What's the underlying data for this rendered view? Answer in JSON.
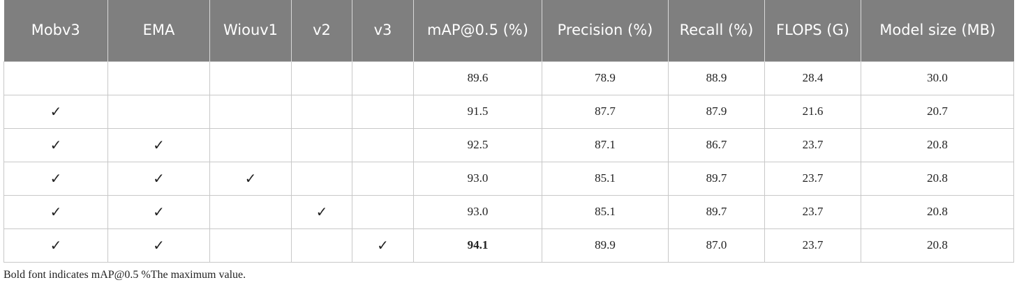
{
  "table": {
    "header": [
      "Mobv3",
      "EMA",
      "Wiouv1",
      "v2",
      "v3",
      "mAP@0.5 (%)",
      "Precision (%)",
      "Recall (%)",
      "FLOPS (G)",
      "Model size (MB)"
    ],
    "rows": [
      [
        null,
        null,
        null,
        null,
        null,
        "89.6",
        "78.9",
        "88.9",
        "28.4",
        "30.0"
      ],
      [
        "✓",
        null,
        null,
        null,
        null,
        "91.5",
        "87.7",
        "87.9",
        "21.6",
        "20.7"
      ],
      [
        "✓",
        "✓",
        null,
        null,
        null,
        "92.5",
        "87.1",
        "86.7",
        "23.7",
        "20.8"
      ],
      [
        "✓",
        "✓",
        "✓",
        null,
        null,
        "93.0",
        "85.1",
        "89.7",
        "23.7",
        "20.8"
      ],
      [
        "✓",
        "✓",
        null,
        "✓",
        null,
        "93.0",
        "85.1",
        "89.7",
        "23.7",
        "20.8"
      ],
      [
        "✓",
        "✓",
        null,
        null,
        "✓",
        "94.1",
        "89.9",
        "87.0",
        "23.7",
        "20.8"
      ]
    ],
    "bold_cells": [
      [
        5,
        5
      ]
    ]
  },
  "footnote": "Bold font indicates mAP@0.5 %The maximum value."
}
